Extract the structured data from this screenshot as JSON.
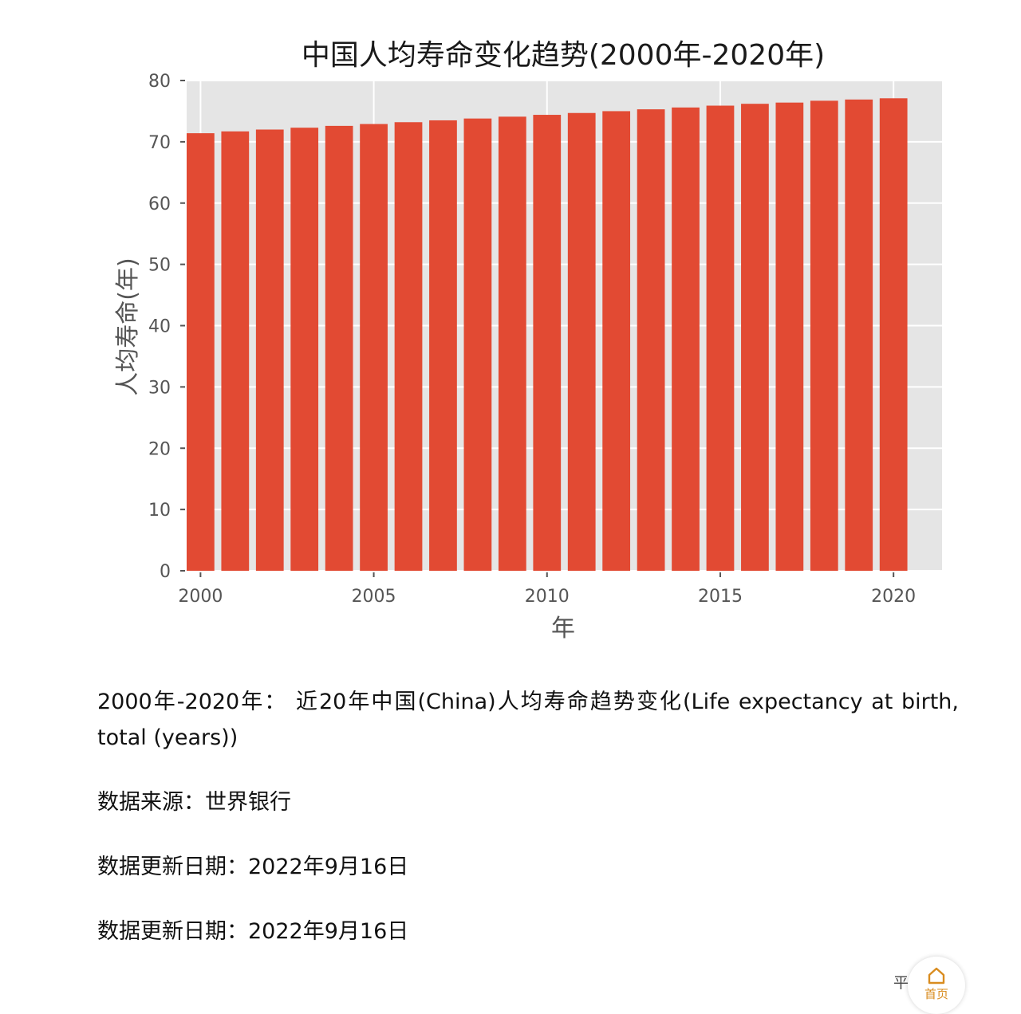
{
  "chart_data": {
    "type": "bar",
    "title": "中国人均寿命变化趋势(2000年-2020年)",
    "xlabel": "年",
    "ylabel": "人均寿命(年)",
    "x": [
      2000,
      2001,
      2002,
      2003,
      2004,
      2005,
      2006,
      2007,
      2008,
      2009,
      2010,
      2011,
      2012,
      2013,
      2014,
      2015,
      2016,
      2017,
      2018,
      2019,
      2020
    ],
    "values": [
      71.4,
      71.7,
      72.0,
      72.3,
      72.6,
      72.9,
      73.2,
      73.5,
      73.8,
      74.1,
      74.4,
      74.7,
      75.0,
      75.3,
      75.6,
      75.9,
      76.2,
      76.4,
      76.7,
      76.9,
      77.1
    ],
    "ylim": [
      0,
      80
    ],
    "yticks": [
      0,
      10,
      20,
      30,
      40,
      50,
      60,
      70,
      80
    ],
    "xticks": [
      2000,
      2005,
      2010,
      2015,
      2020
    ],
    "xlim": [
      1999.6,
      2021.4
    ],
    "grid": true,
    "legend": false,
    "colors": {
      "bar": "#e24a33",
      "plot_background": "#e5e5e5",
      "grid": "#ffffff"
    }
  },
  "article": {
    "description": "2000年-2020年： 近20年中国(China)人均寿命趋势变化(Life expectancy at birth, total (years))",
    "source": "数据来源：世界银行",
    "update_1": "数据更新日期：2022年9月16日",
    "update_2": "数据更新日期：2022年9月16日"
  },
  "footer": {
    "hint": "平",
    "home_icon": "home-icon",
    "home_label": "首页",
    "accent": "#d98c1f"
  }
}
